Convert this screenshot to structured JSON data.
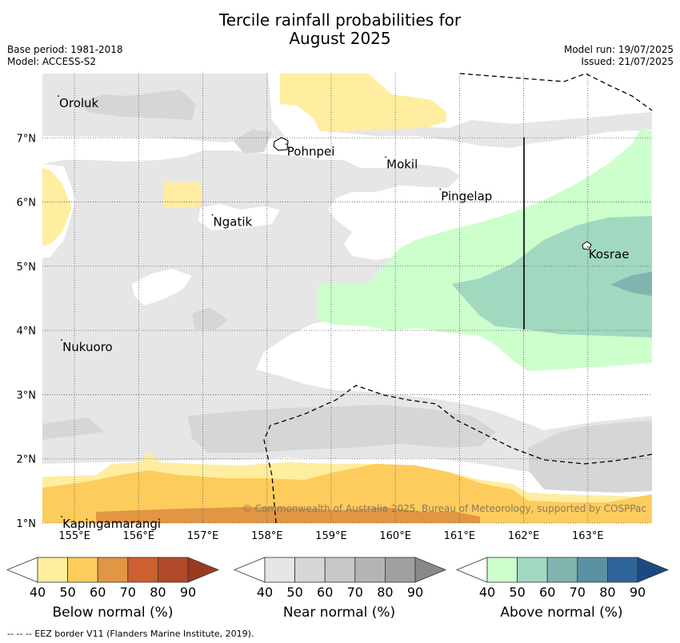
{
  "header": {
    "title_line1": "Tercile rainfall probabilities for",
    "title_line2": "August 2025",
    "base_period": "Base period: 1981-2018",
    "model": "Model: ACCESS-S2",
    "model_run": "Model run: 19/07/2025",
    "issued": "Issued: 21/07/2025"
  },
  "map": {
    "x_ticks": [
      "155°E",
      "156°E",
      "157°E",
      "158°E",
      "159°E",
      "160°E",
      "161°E",
      "162°E",
      "163°E"
    ],
    "y_ticks": [
      "7°N",
      "6°N",
      "5°N",
      "4°N",
      "3°N",
      "2°N",
      "1°N"
    ],
    "x_range": [
      154.5,
      164.0
    ],
    "y_range": [
      1.0,
      8.0
    ],
    "places": [
      {
        "name": "Oroluk",
        "lon": 154.75,
        "lat": 7.65
      },
      {
        "name": "Pohnpei",
        "lon": 158.3,
        "lat": 6.9
      },
      {
        "name": "Mokil",
        "lon": 159.85,
        "lat": 6.7
      },
      {
        "name": "Pingelap",
        "lon": 160.7,
        "lat": 6.2
      },
      {
        "name": "Ngatik",
        "lon": 157.15,
        "lat": 5.8
      },
      {
        "name": "Kosrae",
        "lon": 163.0,
        "lat": 5.3
      },
      {
        "name": "Nukuoro",
        "lon": 154.8,
        "lat": 3.85
      },
      {
        "name": "Kapingamarangi",
        "lon": 154.8,
        "lat": 1.1
      }
    ],
    "copyright": "© Commonwealth of Australia 2025, Bureau of Meteorology, supported by COSPPac"
  },
  "colorbars": [
    {
      "label": "Below normal (%)",
      "ticks": [
        "40",
        "50",
        "60",
        "70",
        "80",
        "90"
      ],
      "colors": [
        "#ffeda0",
        "#fecc5c",
        "#e19644",
        "#cc6030",
        "#b04a28",
        "#9a3a20"
      ]
    },
    {
      "label": "Near normal (%)",
      "ticks": [
        "40",
        "50",
        "60",
        "70",
        "80",
        "90"
      ],
      "colors": [
        "#e6e6e6",
        "#d6d6d6",
        "#c8c8c8",
        "#b4b4b4",
        "#a0a0a0",
        "#888888"
      ]
    },
    {
      "label": "Above normal (%)",
      "ticks": [
        "40",
        "50",
        "60",
        "70",
        "80",
        "90"
      ],
      "colors": [
        "#ccffcc",
        "#a1d8c0",
        "#81b4ae",
        "#5a92a2",
        "#2e6598",
        "#1a4a80"
      ]
    }
  ],
  "footer": "-- -- -- EEZ border V11 (Flanders Marine Institute, 2019)."
}
